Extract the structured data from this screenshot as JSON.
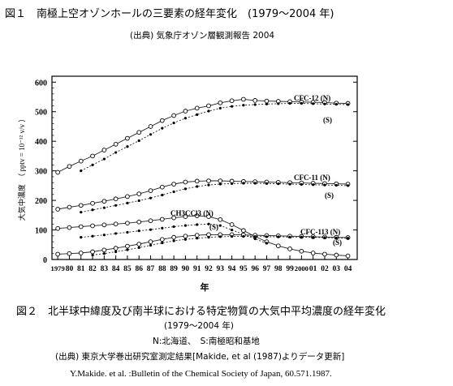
{
  "figure1": {
    "title": "図１　南極上空オゾンホールの三要素の経年変化　(1979～2004 年)",
    "source": "(出典) 気象庁オゾン層観測報告 2004"
  },
  "figure2": {
    "title": "図２　北半球中緯度及び南半球における特定物質の大気中平均濃度の経年変化",
    "period": "(1979～2004 年)",
    "legend": "N:北海道、　S:南極昭和基地",
    "source": "(出典) 東京大学巻出研究室測定結果[Makide, et al (1987)よりデータ更新]",
    "citation": "Y.Makide. et al. :Bulletin of the Chemical Society of Japan, 60.571.1987."
  },
  "chart_data": {
    "type": "line",
    "title": "",
    "xlabel": "年",
    "ylabel": "大気中濃度　（ pptv = 10⁻¹² v/v ）",
    "xlim": [
      1978.5,
      2004.8
    ],
    "ylim": [
      0,
      620
    ],
    "x_tick_labels": [
      "1979",
      "80",
      "81",
      "82",
      "83",
      "84",
      "85",
      "86",
      "87",
      "88",
      "89",
      "90",
      "91",
      "92",
      "93",
      "94",
      "95",
      "96",
      "97",
      "98",
      "99",
      "2000",
      "01",
      "02",
      "03",
      "04"
    ],
    "y_ticks": [
      0,
      100,
      200,
      300,
      400,
      500,
      600
    ],
    "annotations": [
      "CFC-12 (N)",
      "(S)",
      "CFC-11 (N)",
      "(S)",
      "CH3CCl3 (N)",
      "(S)",
      "CFC-113 (N)",
      "(S)"
    ],
    "series": [
      {
        "name": "CFC-12 (N)",
        "marker": "open-circle",
        "x": [
          1979,
          1980,
          1981,
          1982,
          1983,
          1984,
          1985,
          1986,
          1987,
          1988,
          1989,
          1990,
          1991,
          1992,
          1993,
          1994,
          1995,
          1996,
          1997,
          1998,
          1999,
          2000,
          2001,
          2002,
          2003,
          2004
        ],
        "y": [
          295,
          315,
          333,
          350,
          370,
          390,
          410,
          430,
          450,
          470,
          487,
          502,
          512,
          520,
          530,
          537,
          542,
          538,
          536,
          535,
          534,
          533,
          532,
          531,
          529,
          528
        ]
      },
      {
        "name": "CFC-12 (S)",
        "marker": "dot",
        "x": [
          1981,
          1982,
          1983,
          1984,
          1985,
          1986,
          1987,
          1988,
          1989,
          1990,
          1991,
          1992,
          1993,
          1994,
          1995,
          1996,
          1997,
          1998,
          1999,
          2000,
          2001,
          2002,
          2003,
          2004
        ],
        "y": [
          300,
          320,
          340,
          362,
          382,
          402,
          423,
          444,
          462,
          478,
          490,
          502,
          512,
          518,
          522,
          524,
          526,
          527,
          528,
          528,
          527,
          526,
          525,
          524
        ]
      },
      {
        "name": "CFC-11 (N)",
        "marker": "open-circle",
        "x": [
          1979,
          1980,
          1981,
          1982,
          1983,
          1984,
          1985,
          1986,
          1987,
          1988,
          1989,
          1990,
          1991,
          1992,
          1993,
          1994,
          1995,
          1996,
          1997,
          1998,
          1999,
          2000,
          2001,
          2002,
          2003,
          2004
        ],
        "y": [
          170,
          177,
          183,
          190,
          197,
          205,
          213,
          222,
          233,
          245,
          255,
          262,
          265,
          266,
          266,
          265,
          264,
          263,
          262,
          261,
          260,
          259,
          258,
          257,
          256,
          255
        ]
      },
      {
        "name": "CFC-11 (S)",
        "marker": "dot",
        "x": [
          1981,
          1982,
          1983,
          1984,
          1985,
          1986,
          1987,
          1988,
          1989,
          1990,
          1991,
          1992,
          1993,
          1994,
          1995,
          1996,
          1997,
          1998,
          1999,
          2000,
          2001,
          2002,
          2003,
          2004
        ],
        "y": [
          160,
          168,
          175,
          183,
          191,
          199,
          208,
          218,
          229,
          239,
          247,
          252,
          255,
          257,
          258,
          258,
          257,
          256,
          255,
          254,
          253,
          252,
          251,
          250
        ]
      },
      {
        "name": "CH3CCl3 (N)",
        "marker": "open-circle",
        "x": [
          1979,
          1980,
          1981,
          1982,
          1983,
          1984,
          1985,
          1986,
          1987,
          1988,
          1989,
          1990,
          1991,
          1992,
          1993,
          1994,
          1995,
          1996,
          1997,
          1998,
          1999,
          2000,
          2001,
          2002,
          2003,
          2004
        ],
        "y": [
          105,
          108,
          111,
          114,
          117,
          120,
          123,
          127,
          131,
          136,
          141,
          145,
          148,
          145,
          135,
          118,
          98,
          78,
          60,
          46,
          36,
          28,
          22,
          18,
          15,
          12
        ]
      },
      {
        "name": "CH3CCl3 (S)",
        "marker": "dot",
        "x": [
          1981,
          1982,
          1983,
          1984,
          1985,
          1986,
          1987,
          1988,
          1989,
          1990,
          1991,
          1992,
          1993,
          1994,
          1995,
          1996,
          1997
        ],
        "y": [
          75,
          79,
          83,
          88,
          92,
          97,
          101,
          106,
          111,
          115,
          118,
          120,
          115,
          100,
          85,
          70,
          55
        ]
      },
      {
        "name": "CFC-113 (N)",
        "marker": "open-circle",
        "x": [
          1979,
          1980,
          1981,
          1982,
          1983,
          1984,
          1985,
          1986,
          1987,
          1988,
          1989,
          1990,
          1991,
          1992,
          1993,
          1994,
          1995,
          1996,
          1997,
          1998,
          1999,
          2000,
          2001,
          2002,
          2003,
          2004
        ],
        "y": [
          18,
          20,
          22,
          26,
          32,
          38,
          45,
          52,
          60,
          68,
          75,
          79,
          82,
          84,
          84,
          84,
          83,
          82,
          81,
          80,
          79,
          78,
          77,
          76,
          75,
          74
        ]
      },
      {
        "name": "CFC-113 (S)",
        "marker": "dot",
        "x": [
          1982,
          1983,
          1984,
          1985,
          1986,
          1987,
          1988,
          1989,
          1990,
          1991,
          1992,
          1993,
          1994,
          1995,
          1996,
          1997,
          1998,
          1999,
          2000,
          2001,
          2002,
          2003,
          2004
        ],
        "y": [
          15,
          20,
          26,
          33,
          40,
          48,
          56,
          63,
          68,
          72,
          75,
          77,
          78,
          78,
          78,
          77,
          77,
          76,
          76,
          75,
          74,
          73,
          72
        ]
      }
    ]
  }
}
